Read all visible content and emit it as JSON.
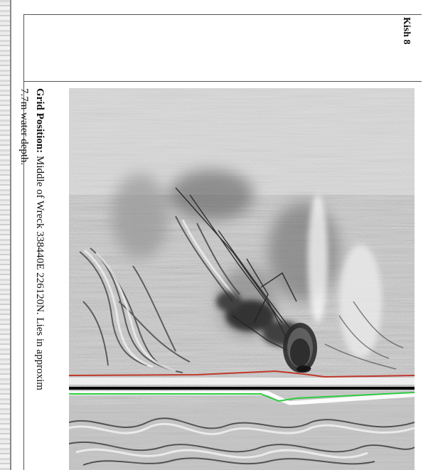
{
  "document": {
    "title": "Kish 8",
    "caption_label": "Grid Position:",
    "caption_line1": " Middle of Wreck 338440E  226120N. Lies in approxim",
    "caption_line2": "7.7m water depth."
  },
  "image": {
    "subject": "sonar-scan-of-wreck",
    "colors": {
      "upper_trace": "#c0392b",
      "lower_trace": "#2ecc40",
      "center_band": "#000000"
    }
  }
}
